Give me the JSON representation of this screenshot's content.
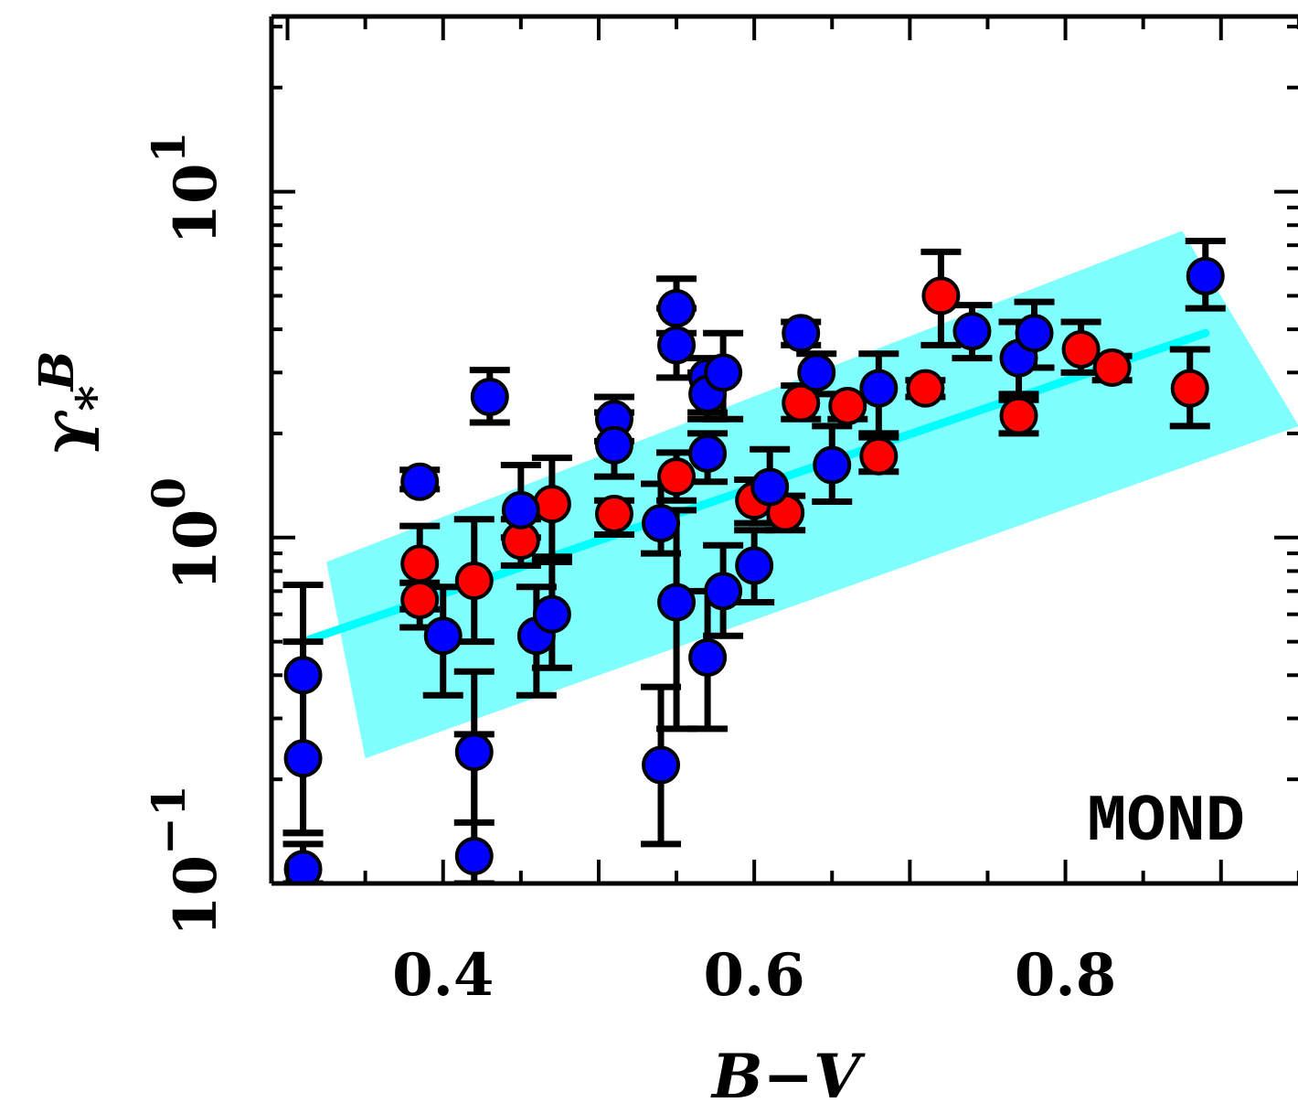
{
  "chart_data": {
    "type": "scatter",
    "xlabel": "B−V",
    "ylabel_main": "ϒ",
    "ylabel_sub": "*",
    "ylabel_sup": "B",
    "annotation": "MOND",
    "y_scale": "log",
    "xlim": [
      0.29,
      0.95
    ],
    "ylim": [
      0.1,
      40
    ],
    "x_ticks": [
      {
        "value": 0.4,
        "label": "0.4"
      },
      {
        "value": 0.6,
        "label": "0.6"
      },
      {
        "value": 0.8,
        "label": "0.8"
      }
    ],
    "y_ticks": [
      {
        "value": 0.1,
        "base": "10",
        "exp": "−1"
      },
      {
        "value": 1,
        "base": "10",
        "exp": "0"
      },
      {
        "value": 10,
        "base": "10",
        "exp": "1"
      }
    ],
    "colors": {
      "red_points": "#ff0000",
      "blue_points": "#0000ff",
      "fit_line": "#00ffff",
      "band": "#80ffff",
      "error_bars": "#000000"
    },
    "fit_line": {
      "x": [
        0.31,
        0.89
      ],
      "y": [
        0.5,
        3.9
      ]
    },
    "band": {
      "x": [
        0.31,
        0.87
      ],
      "y_upper": [
        0.85,
        7.7
      ],
      "y_lower": [
        0.23,
        2.0
      ]
    },
    "series": [
      {
        "color": "red",
        "points": [
          {
            "x": 0.385,
            "y": 0.84,
            "ylo": 0.62,
            "yhi": 1.08
          },
          {
            "x": 0.385,
            "y": 0.66,
            "ylo": 0.55,
            "yhi": 0.74
          },
          {
            "x": 0.42,
            "y": 0.75,
            "ylo": 0.5,
            "yhi": 1.13
          },
          {
            "x": 0.45,
            "y": 0.98,
            "ylo": 0.83,
            "yhi": 1.13
          },
          {
            "x": 0.47,
            "y": 1.25,
            "ylo": 0.88,
            "yhi": 1.7
          },
          {
            "x": 0.51,
            "y": 1.17,
            "ylo": 1.02,
            "yhi": 1.28
          },
          {
            "x": 0.55,
            "y": 1.5,
            "ylo": 1.28,
            "yhi": 1.76
          },
          {
            "x": 0.6,
            "y": 1.28,
            "ylo": 1.1,
            "yhi": 1.47
          },
          {
            "x": 0.62,
            "y": 1.18,
            "ylo": 1.05,
            "yhi": 1.32
          },
          {
            "x": 0.63,
            "y": 2.45,
            "ylo": 2.2,
            "yhi": 2.75
          },
          {
            "x": 0.66,
            "y": 2.4,
            "ylo": 2.2,
            "yhi": 2.6
          },
          {
            "x": 0.68,
            "y": 1.72,
            "ylo": 1.55,
            "yhi": 1.95
          },
          {
            "x": 0.71,
            "y": 2.7,
            "ylo": 2.55,
            "yhi": 2.85
          },
          {
            "x": 0.72,
            "y": 5.0,
            "ylo": 3.6,
            "yhi": 6.7
          },
          {
            "x": 0.77,
            "y": 2.25,
            "ylo": 2.0,
            "yhi": 2.6
          },
          {
            "x": 0.81,
            "y": 3.5,
            "ylo": 3.0,
            "yhi": 4.2
          },
          {
            "x": 0.83,
            "y": 3.1,
            "ylo": 2.85,
            "yhi": 3.35
          },
          {
            "x": 0.88,
            "y": 2.7,
            "ylo": 2.1,
            "yhi": 3.5
          }
        ]
      },
      {
        "color": "blue",
        "points": [
          {
            "x": 0.31,
            "y": 0.11,
            "ylo": 0.1,
            "yhi": 0.13
          },
          {
            "x": 0.31,
            "y": 0.23,
            "ylo": 0.14,
            "yhi": 0.5
          },
          {
            "x": 0.31,
            "y": 0.4,
            "ylo": 0.14,
            "yhi": 0.73
          },
          {
            "x": 0.385,
            "y": 1.45,
            "ylo": 1.38,
            "yhi": 1.57
          },
          {
            "x": 0.4,
            "y": 0.52,
            "ylo": 0.35,
            "yhi": 0.72
          },
          {
            "x": 0.42,
            "y": 0.24,
            "ylo": 0.15,
            "yhi": 0.41
          },
          {
            "x": 0.42,
            "y": 0.12,
            "ylo": 0.1,
            "yhi": 0.27
          },
          {
            "x": 0.43,
            "y": 2.55,
            "ylo": 2.15,
            "yhi": 3.05
          },
          {
            "x": 0.45,
            "y": 1.2,
            "ylo": 1.0,
            "yhi": 1.62
          },
          {
            "x": 0.46,
            "y": 0.52,
            "ylo": 0.35,
            "yhi": 0.72
          },
          {
            "x": 0.47,
            "y": 0.6,
            "ylo": 0.42,
            "yhi": 0.85
          },
          {
            "x": 0.51,
            "y": 2.2,
            "ylo": 1.9,
            "yhi": 2.55
          },
          {
            "x": 0.51,
            "y": 1.85,
            "ylo": 1.5,
            "yhi": 2.3
          },
          {
            "x": 0.54,
            "y": 1.1,
            "ylo": 0.9,
            "yhi": 1.43
          },
          {
            "x": 0.54,
            "y": 0.22,
            "ylo": 0.13,
            "yhi": 0.37
          },
          {
            "x": 0.55,
            "y": 4.6,
            "ylo": 3.9,
            "yhi": 5.6
          },
          {
            "x": 0.55,
            "y": 3.6,
            "ylo": 2.9,
            "yhi": 4.6
          },
          {
            "x": 0.55,
            "y": 0.65,
            "ylo": 0.28,
            "yhi": 1.2
          },
          {
            "x": 0.57,
            "y": 2.9,
            "ylo": 2.3,
            "yhi": 3.3
          },
          {
            "x": 0.57,
            "y": 2.6,
            "ylo": 2.2,
            "yhi": 3.0
          },
          {
            "x": 0.57,
            "y": 1.75,
            "ylo": 1.45,
            "yhi": 2.0
          },
          {
            "x": 0.57,
            "y": 0.45,
            "ylo": 0.28,
            "yhi": 0.7
          },
          {
            "x": 0.58,
            "y": 3.0,
            "ylo": 2.2,
            "yhi": 3.9
          },
          {
            "x": 0.58,
            "y": 0.7,
            "ylo": 0.52,
            "yhi": 0.95
          },
          {
            "x": 0.6,
            "y": 0.83,
            "ylo": 0.65,
            "yhi": 1.05
          },
          {
            "x": 0.61,
            "y": 1.4,
            "ylo": 1.1,
            "yhi": 1.8
          },
          {
            "x": 0.63,
            "y": 3.9,
            "ylo": 3.6,
            "yhi": 4.2
          },
          {
            "x": 0.64,
            "y": 3.0,
            "ylo": 2.6,
            "yhi": 3.4
          },
          {
            "x": 0.65,
            "y": 1.62,
            "ylo": 1.27,
            "yhi": 2.1
          },
          {
            "x": 0.68,
            "y": 2.7,
            "ylo": 2.0,
            "yhi": 3.4
          },
          {
            "x": 0.74,
            "y": 3.95,
            "ylo": 3.3,
            "yhi": 4.7
          },
          {
            "x": 0.77,
            "y": 3.3,
            "ylo": 2.5,
            "yhi": 4.2
          },
          {
            "x": 0.78,
            "y": 3.9,
            "ylo": 3.1,
            "yhi": 4.8
          },
          {
            "x": 0.89,
            "y": 5.7,
            "ylo": 4.6,
            "yhi": 7.2
          }
        ]
      }
    ]
  }
}
